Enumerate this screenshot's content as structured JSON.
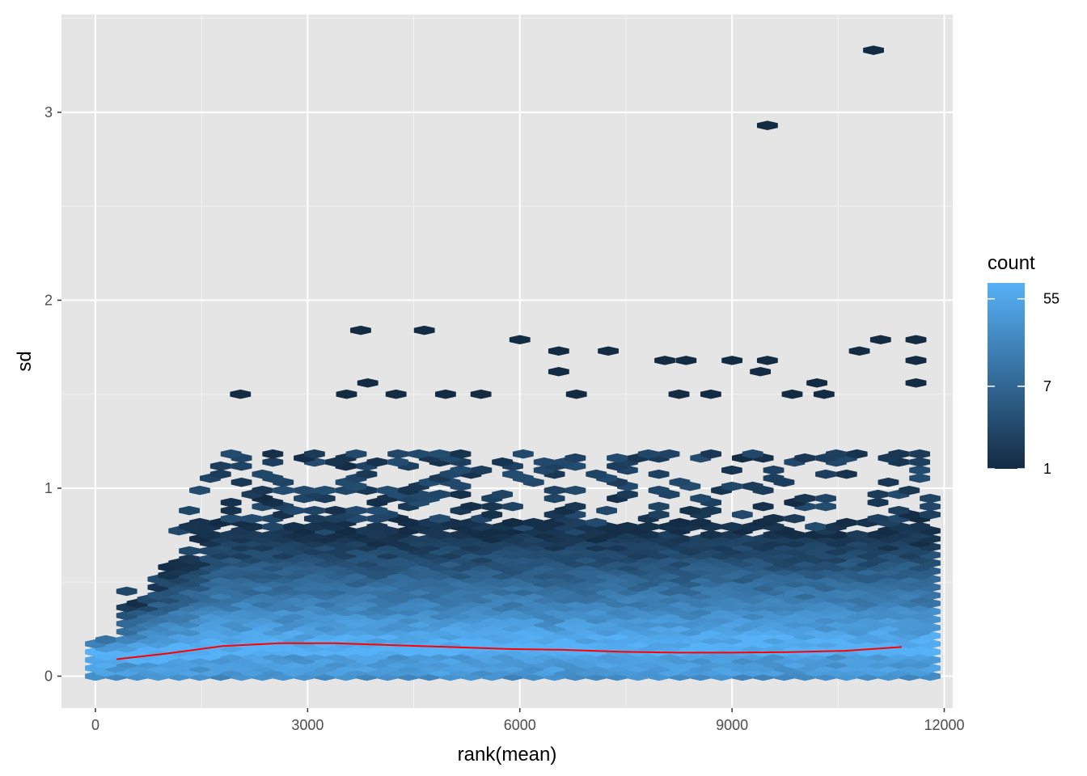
{
  "chart_data": {
    "type": "hexbin",
    "xlabel": "rank(mean)",
    "ylabel": "sd",
    "xlim": [
      -480,
      12120
    ],
    "ylim": [
      -0.17,
      3.52
    ],
    "x_ticks": [
      0,
      3000,
      6000,
      9000,
      12000
    ],
    "x_tick_labels": [
      "0",
      "3000",
      "6000",
      "9000",
      "12000"
    ],
    "y_ticks": [
      0,
      1,
      2,
      3
    ],
    "y_tick_labels": [
      "0",
      "1",
      "2",
      "3"
    ],
    "grid": true,
    "background": "#e5e5e5",
    "legend": {
      "title": "count",
      "position": "right",
      "scale": "log",
      "breaks": [
        1,
        7,
        55
      ],
      "break_labels": [
        "1",
        "7",
        "55"
      ],
      "range": [
        1,
        80
      ],
      "low_color": "#132b43",
      "high_color": "#56b1f7"
    },
    "hexbin": {
      "x_range": [
        0,
        11800
      ],
      "y_range": [
        0,
        3.33
      ],
      "bins": 40
    },
    "smooth_line": {
      "color": "#ff0000",
      "x": [
        300,
        1000,
        1800,
        2600,
        3400,
        4200,
        5000,
        5800,
        6600,
        7400,
        8200,
        9000,
        9800,
        10600,
        11400
      ],
      "y": [
        0.09,
        0.12,
        0.16,
        0.175,
        0.175,
        0.165,
        0.155,
        0.145,
        0.14,
        0.13,
        0.125,
        0.125,
        0.128,
        0.135,
        0.155
      ]
    },
    "outlier_points": [
      {
        "x": 11000,
        "y": 3.33
      },
      {
        "x": 9500,
        "y": 2.93
      },
      {
        "x": 3750,
        "y": 1.84
      },
      {
        "x": 4650,
        "y": 1.84
      },
      {
        "x": 6000,
        "y": 1.79
      },
      {
        "x": 11100,
        "y": 1.79
      },
      {
        "x": 11600,
        "y": 1.79
      },
      {
        "x": 6550,
        "y": 1.73
      },
      {
        "x": 7250,
        "y": 1.73
      },
      {
        "x": 10800,
        "y": 1.73
      },
      {
        "x": 8050,
        "y": 1.68
      },
      {
        "x": 8350,
        "y": 1.68
      },
      {
        "x": 9000,
        "y": 1.68
      },
      {
        "x": 9500,
        "y": 1.68
      },
      {
        "x": 11600,
        "y": 1.68
      },
      {
        "x": 6550,
        "y": 1.62
      },
      {
        "x": 9400,
        "y": 1.62
      },
      {
        "x": 10200,
        "y": 1.56
      },
      {
        "x": 11600,
        "y": 1.56
      },
      {
        "x": 3850,
        "y": 1.56
      },
      {
        "x": 2050,
        "y": 1.5
      },
      {
        "x": 3550,
        "y": 1.5
      },
      {
        "x": 4250,
        "y": 1.5
      },
      {
        "x": 4950,
        "y": 1.5
      },
      {
        "x": 5450,
        "y": 1.5
      },
      {
        "x": 6800,
        "y": 1.5
      },
      {
        "x": 8250,
        "y": 1.5
      },
      {
        "x": 8700,
        "y": 1.5
      },
      {
        "x": 9850,
        "y": 1.5
      },
      {
        "x": 10300,
        "y": 1.5
      }
    ]
  }
}
